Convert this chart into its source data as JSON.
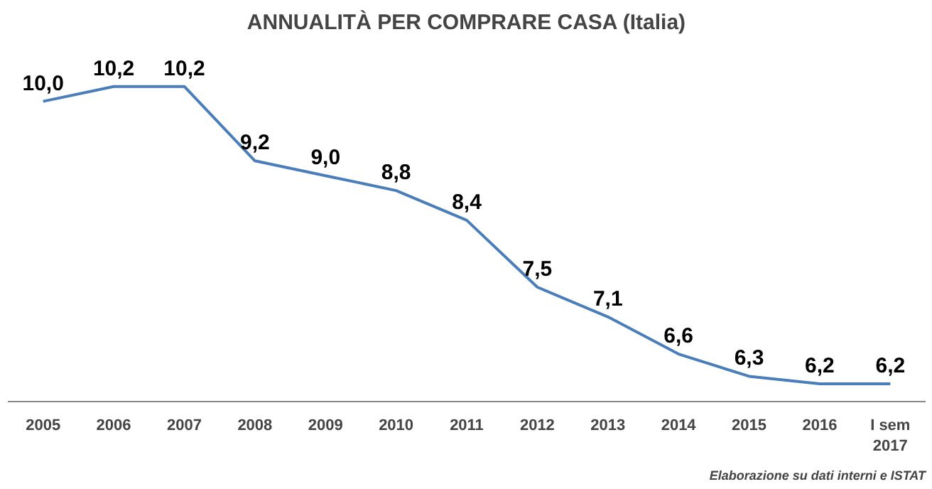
{
  "chart_data": {
    "type": "line",
    "title": "ANNUALITÀ PER COMPRARE CASA (Italia)",
    "categories": [
      "2005",
      "2006",
      "2007",
      "2008",
      "2009",
      "2010",
      "2011",
      "2012",
      "2013",
      "2014",
      "2015",
      "2016",
      "I sem\n2017"
    ],
    "series": [
      {
        "color": "#4a7ebb",
        "values": [
          10.0,
          10.2,
          10.2,
          9.2,
          9.0,
          8.8,
          8.4,
          7.5,
          7.1,
          6.6,
          6.3,
          6.2,
          6.2
        ],
        "value_labels": [
          "10,0",
          "10,2",
          "10,2",
          "9,2",
          "9,0",
          "8,8",
          "8,4",
          "7,5",
          "7,1",
          "6,6",
          "6,3",
          "6,2",
          "6,2"
        ]
      }
    ],
    "grid": false,
    "marker": "none",
    "line_style": "solid",
    "annotations": [
      "Elaborazione su dati interni e ISTAT"
    ]
  }
}
